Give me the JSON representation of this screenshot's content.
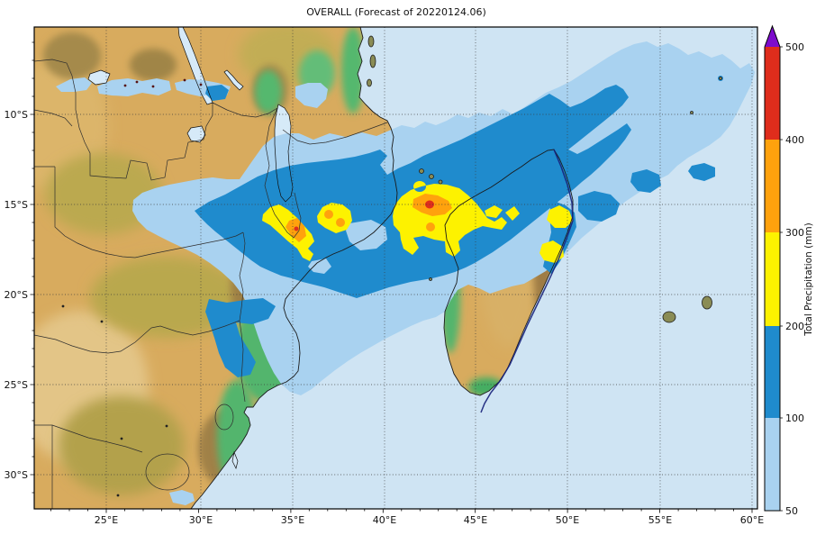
{
  "title": "OVERALL (Forecast of 20220124.06)",
  "axes": {
    "x_ticks": [
      "25°E",
      "30°E",
      "35°E",
      "40°E",
      "45°E",
      "50°E",
      "55°E",
      "60°E"
    ],
    "y_ticks": [
      "10°S",
      "15°S",
      "20°S",
      "25°S",
      "30°S"
    ]
  },
  "colorbar": {
    "label": "Total Precipitation (mm)",
    "ticks": [
      "50",
      "100",
      "200",
      "300",
      "400",
      "500"
    ],
    "levels": [
      {
        "range": "50-100",
        "color": "#a9d2f0"
      },
      {
        "range": "100-200",
        "color": "#1f8bcd"
      },
      {
        "range": "200-300",
        "color": "#fdf200"
      },
      {
        "range": "300-400",
        "color": "#ffa20d"
      },
      {
        "range": "400-500",
        "color": "#df2d1c"
      },
      {
        "range": ">500",
        "color": "#7d0ccc"
      }
    ]
  },
  "map": {
    "ocean_color": "#cfe4f3",
    "land_color": "#d8ab5e",
    "lake_color": "#d6eaf8",
    "coast_color": "#1a1a1a",
    "border_color": "#2e2e2e",
    "grid_color": "#3c3c3c",
    "track_color": "#16207a",
    "island_color": "#8a8c55",
    "speck_color": "#551111"
  }
}
